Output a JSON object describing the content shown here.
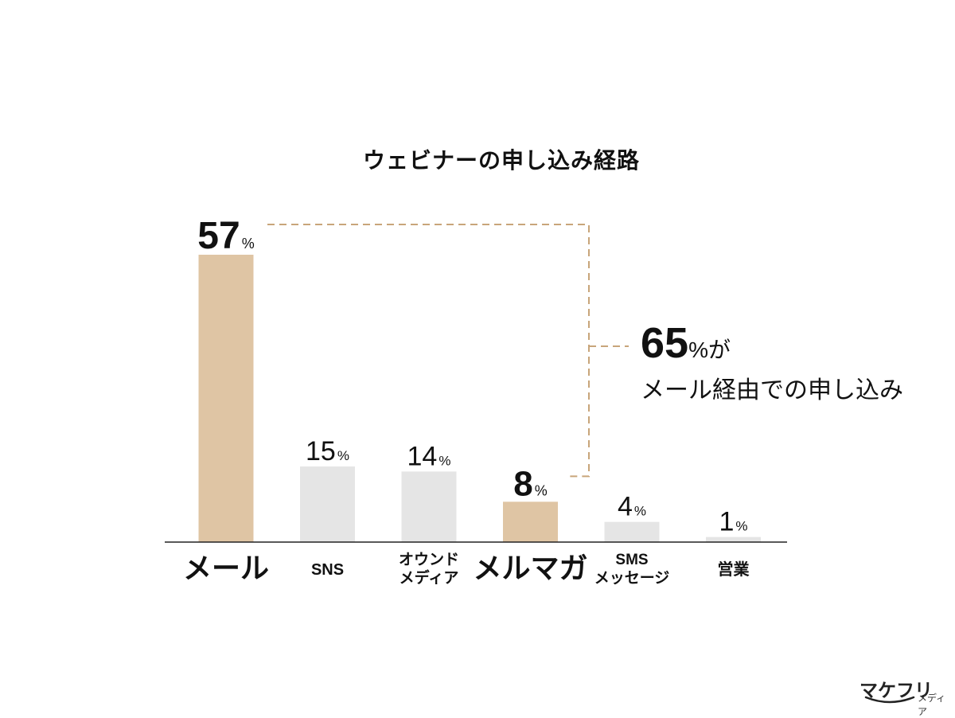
{
  "chart_data": {
    "type": "bar",
    "title": "ウェビナーの申し込み経路",
    "categories": [
      "メール",
      "SNS",
      "オウンドメディア",
      "メルマガ",
      "SMSメッセージ",
      "営業"
    ],
    "category_lines": [
      [
        "メール"
      ],
      [
        "SNS"
      ],
      [
        "オウンド",
        "メディア"
      ],
      [
        "メルマガ"
      ],
      [
        "SMS",
        "メッセージ"
      ],
      [
        "営業"
      ]
    ],
    "values": [
      57,
      15,
      14,
      8,
      4,
      1
    ],
    "unit": "%",
    "highlighted": [
      true,
      false,
      false,
      true,
      false,
      false
    ],
    "ylim": [
      0,
      57
    ],
    "colors": {
      "highlight": "#dfc5a4",
      "normal": "#e5e5e5",
      "axis": "#222222",
      "bracket": "#c8a57a"
    },
    "annotation": {
      "value": "65",
      "unit": "%",
      "suffix": "が",
      "line2": "メール経由での申し込み"
    }
  },
  "logo": {
    "main": "マケフリ",
    "sub": "メディア"
  }
}
